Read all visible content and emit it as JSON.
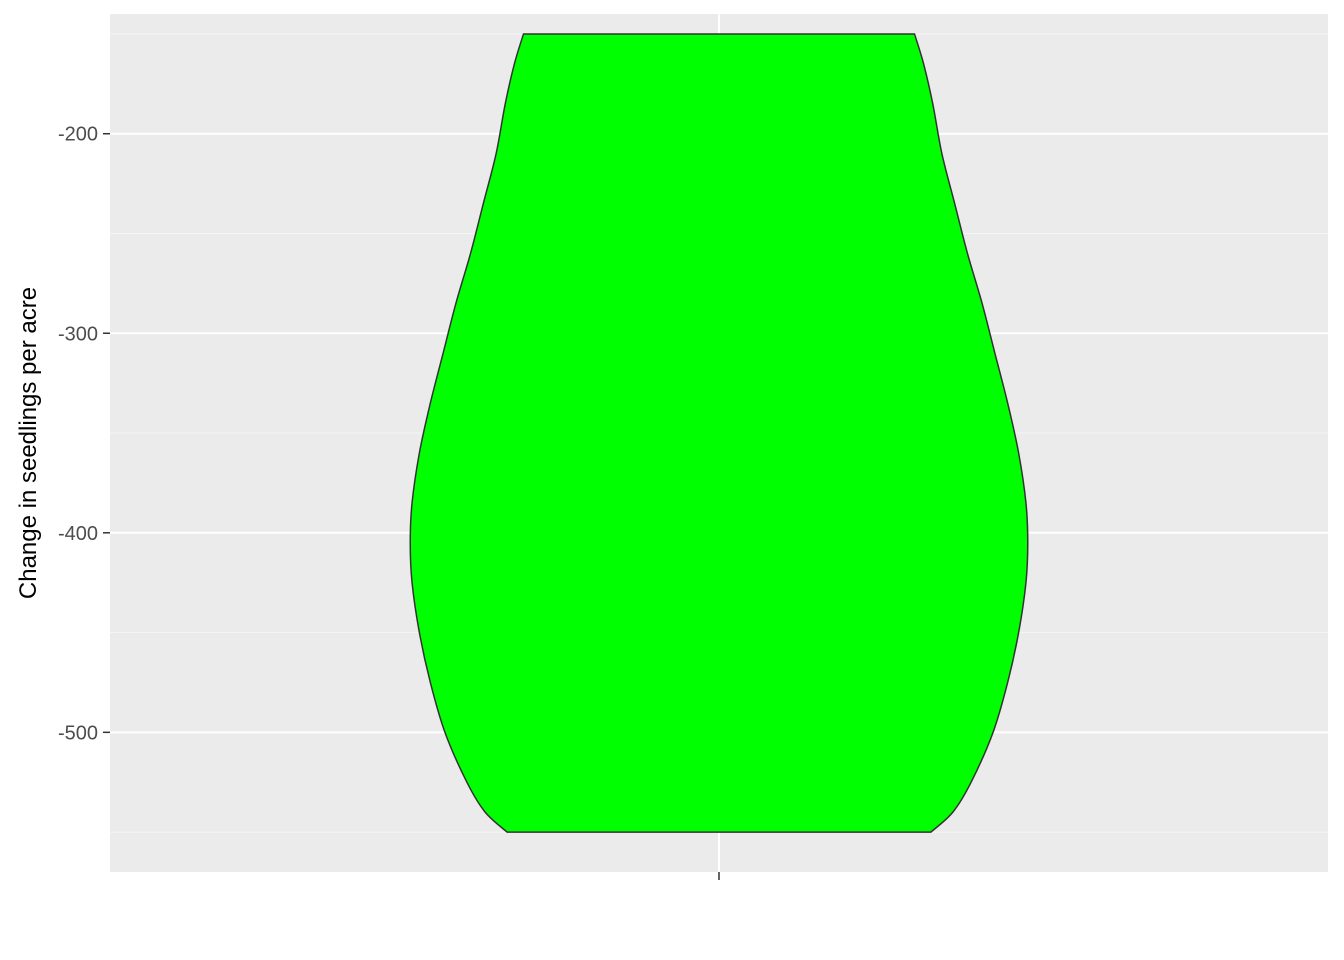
{
  "chart_data": {
    "type": "violin",
    "title": "",
    "xlabel": "",
    "ylabel": "Change in seedlings per acre",
    "ylim": [
      -570,
      -140
    ],
    "y_ticks": [
      -500,
      -400,
      -300,
      -200
    ],
    "y_tick_labels": [
      "-500",
      "-400",
      "-300",
      "-200"
    ],
    "categories": [
      ""
    ],
    "grid": true,
    "legend": "none",
    "series": [
      {
        "fill": "#00ff00",
        "outline": "#333333",
        "y_min": -550,
        "y_max": -150,
        "density_profile": [
          {
            "y": -550,
            "width": 0.58
          },
          {
            "y": -540,
            "width": 0.64
          },
          {
            "y": -525,
            "width": 0.69
          },
          {
            "y": -500,
            "width": 0.75
          },
          {
            "y": -475,
            "width": 0.79
          },
          {
            "y": -450,
            "width": 0.82
          },
          {
            "y": -425,
            "width": 0.84
          },
          {
            "y": -405,
            "width": 0.845
          },
          {
            "y": -385,
            "width": 0.84
          },
          {
            "y": -360,
            "width": 0.82
          },
          {
            "y": -335,
            "width": 0.79
          },
          {
            "y": -310,
            "width": 0.755
          },
          {
            "y": -285,
            "width": 0.72
          },
          {
            "y": -260,
            "width": 0.68
          },
          {
            "y": -235,
            "width": 0.645
          },
          {
            "y": -210,
            "width": 0.61
          },
          {
            "y": -185,
            "width": 0.585
          },
          {
            "y": -165,
            "width": 0.56
          },
          {
            "y": -150,
            "width": 0.535
          }
        ]
      }
    ],
    "colors": {
      "panel_background": "#ebebeb",
      "grid_major": "#ffffff",
      "grid_minor": "#f5f5f5",
      "tick": "#333333"
    }
  }
}
